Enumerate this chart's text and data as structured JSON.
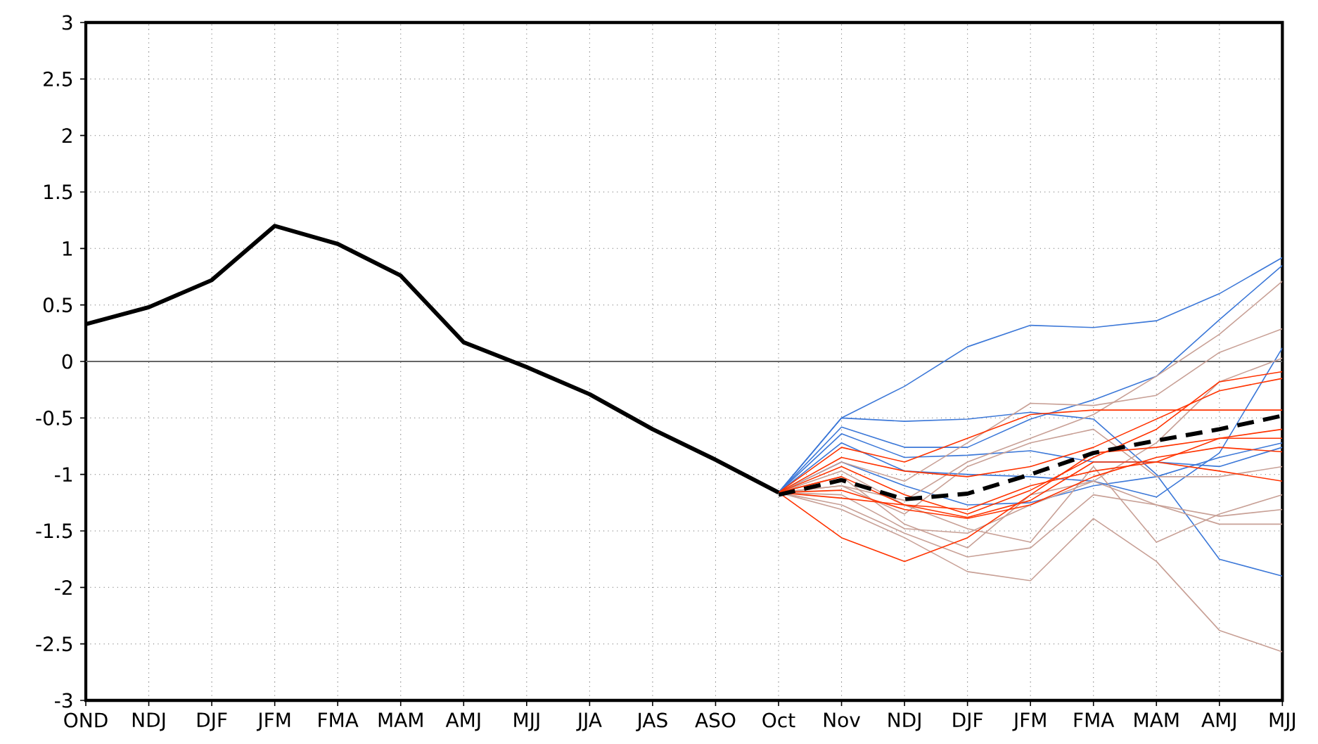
{
  "chart_data": {
    "type": "line",
    "categories": [
      "OND",
      "NDJ",
      "DJF",
      "JFM",
      "FMA",
      "MAM",
      "AMJ",
      "MJJ",
      "JJA",
      "JAS",
      "ASO",
      "Oct",
      "Nov",
      "NDJ",
      "DJF",
      "JFM",
      "FMA",
      "MAM",
      "AMJ",
      "MJJ"
    ],
    "ylim": [
      -3,
      3
    ],
    "yticks": [
      -3,
      -2.5,
      -2,
      -1.5,
      -1,
      -0.5,
      0,
      0.5,
      1,
      1.5,
      2,
      2.5,
      3
    ],
    "grid": true,
    "ref_lines": [
      {
        "axis": "y",
        "value": 0,
        "color": "#666666"
      }
    ],
    "series": [
      {
        "color": "#3c78d8",
        "values": [
          null,
          null,
          null,
          null,
          null,
          null,
          null,
          null,
          null,
          null,
          null,
          -1.16,
          -0.5,
          -0.22,
          0.13,
          0.32,
          0.3,
          0.36,
          0.6,
          0.92
        ]
      },
      {
        "color": "#3c78d8",
        "values": [
          null,
          null,
          null,
          null,
          null,
          null,
          null,
          null,
          null,
          null,
          null,
          -1.16,
          -0.5,
          -0.53,
          -0.51,
          -0.45,
          -0.51,
          -1.0,
          -1.75,
          -1.9
        ]
      },
      {
        "color": "#3c78d8",
        "values": [
          null,
          null,
          null,
          null,
          null,
          null,
          null,
          null,
          null,
          null,
          null,
          -1.16,
          -0.58,
          -0.76,
          -0.76,
          -0.51,
          -0.34,
          -0.13,
          0.37,
          0.85
        ]
      },
      {
        "color": "#3c78d8",
        "values": [
          null,
          null,
          null,
          null,
          null,
          null,
          null,
          null,
          null,
          null,
          null,
          -1.16,
          -0.64,
          -0.85,
          -0.83,
          -0.79,
          -0.89,
          -0.89,
          -0.93,
          -0.76
        ]
      },
      {
        "color": "#3c78d8",
        "values": [
          null,
          null,
          null,
          null,
          null,
          null,
          null,
          null,
          null,
          null,
          null,
          -1.16,
          -0.72,
          -0.97,
          -1.0,
          -1.02,
          -1.06,
          -1.2,
          -0.81,
          0.12
        ]
      },
      {
        "color": "#3c78d8",
        "values": [
          null,
          null,
          null,
          null,
          null,
          null,
          null,
          null,
          null,
          null,
          null,
          -1.16,
          -0.89,
          -1.1,
          -1.27,
          -1.25,
          -1.1,
          -1.02,
          -0.85,
          -0.72
        ]
      },
      {
        "color": "#c8a096",
        "values": [
          null,
          null,
          null,
          null,
          null,
          null,
          null,
          null,
          null,
          null,
          null,
          -1.16,
          -1.1,
          -1.23,
          -0.89,
          -0.68,
          -0.47,
          -0.13,
          0.24,
          0.71
        ]
      },
      {
        "color": "#c8a096",
        "values": [
          null,
          null,
          null,
          null,
          null,
          null,
          null,
          null,
          null,
          null,
          null,
          -1.16,
          -1.27,
          -1.52,
          -1.73,
          -1.65,
          -1.18,
          -1.27,
          -1.44,
          -1.44
        ]
      },
      {
        "color": "#c8a096",
        "values": [
          null,
          null,
          null,
          null,
          null,
          null,
          null,
          null,
          null,
          null,
          null,
          -1.16,
          -1.31,
          -1.56,
          -1.86,
          -1.94,
          -1.39,
          -1.77,
          -2.38,
          -2.57
        ]
      },
      {
        "color": "#c8a096",
        "values": [
          null,
          null,
          null,
          null,
          null,
          null,
          null,
          null,
          null,
          null,
          null,
          -1.16,
          -1.18,
          -1.48,
          -1.52,
          -1.27,
          -1.06,
          -1.27,
          -1.37,
          -1.31
        ]
      },
      {
        "color": "#c8a096",
        "values": [
          null,
          null,
          null,
          null,
          null,
          null,
          null,
          null,
          null,
          null,
          null,
          -1.16,
          -0.89,
          -1.06,
          -0.72,
          -0.37,
          -0.39,
          -0.3,
          0.08,
          0.29
        ]
      },
      {
        "color": "#c8a096",
        "values": [
          null,
          null,
          null,
          null,
          null,
          null,
          null,
          null,
          null,
          null,
          null,
          -1.16,
          -1.02,
          -1.44,
          -1.65,
          -1.18,
          -1.06,
          -0.72,
          -0.18,
          0.03
        ]
      },
      {
        "color": "#c8a096",
        "values": [
          null,
          null,
          null,
          null,
          null,
          null,
          null,
          null,
          null,
          null,
          null,
          -1.16,
          -0.97,
          -1.27,
          -1.48,
          -1.6,
          -0.93,
          -1.6,
          -1.35,
          -1.18
        ]
      },
      {
        "color": "#c8a096",
        "values": [
          null,
          null,
          null,
          null,
          null,
          null,
          null,
          null,
          null,
          null,
          null,
          -1.16,
          -1.1,
          -1.35,
          -0.93,
          -0.72,
          -0.6,
          -1.02,
          -1.02,
          -0.93
        ]
      },
      {
        "color": "#ff3300",
        "values": [
          null,
          null,
          null,
          null,
          null,
          null,
          null,
          null,
          null,
          null,
          null,
          -1.16,
          -0.76,
          -0.89,
          -0.68,
          -0.47,
          -0.43,
          -0.43,
          -0.43,
          -0.43
        ]
      },
      {
        "color": "#ff3300",
        "values": [
          null,
          null,
          null,
          null,
          null,
          null,
          null,
          null,
          null,
          null,
          null,
          -1.16,
          -0.85,
          -0.97,
          -1.02,
          -0.93,
          -0.76,
          -0.51,
          -0.26,
          -0.15
        ]
      },
      {
        "color": "#ff3300",
        "values": [
          null,
          null,
          null,
          null,
          null,
          null,
          null,
          null,
          null,
          null,
          null,
          -1.16,
          -0.93,
          -1.18,
          -1.35,
          -1.14,
          -0.85,
          -0.6,
          -0.18,
          -0.09
        ]
      },
      {
        "color": "#ff3300",
        "values": [
          null,
          null,
          null,
          null,
          null,
          null,
          null,
          null,
          null,
          null,
          null,
          -1.16,
          -1.21,
          -1.27,
          -1.38,
          -1.23,
          -0.89,
          -0.89,
          -0.97,
          -1.06
        ]
      },
      {
        "color": "#ff3300",
        "values": [
          null,
          null,
          null,
          null,
          null,
          null,
          null,
          null,
          null,
          null,
          null,
          -1.16,
          -1.56,
          -1.77,
          -1.56,
          -1.18,
          -0.81,
          -0.76,
          -0.68,
          -0.6
        ]
      },
      {
        "color": "#ff3300",
        "values": [
          null,
          null,
          null,
          null,
          null,
          null,
          null,
          null,
          null,
          null,
          null,
          -1.16,
          -1.02,
          -1.27,
          -1.31,
          -1.1,
          -0.97,
          -0.89,
          -0.68,
          -0.68
        ]
      },
      {
        "color": "#ff3300",
        "values": [
          null,
          null,
          null,
          null,
          null,
          null,
          null,
          null,
          null,
          null,
          null,
          -1.16,
          -1.14,
          -1.31,
          -1.39,
          -1.27,
          -1.02,
          -0.85,
          -0.76,
          -0.8
        ]
      },
      {
        "color": "#000000",
        "line_style": "solid",
        "values": [
          0.33,
          0.48,
          0.72,
          1.2,
          1.04,
          0.76,
          0.17,
          -0.05,
          -0.29,
          -0.6,
          -0.87,
          -1.16,
          null,
          null,
          null,
          null,
          null,
          null,
          null,
          null
        ]
      },
      {
        "color": "#000000",
        "line_style": "dashed",
        "values": [
          null,
          null,
          null,
          null,
          null,
          null,
          null,
          null,
          null,
          null,
          null,
          -1.18,
          -1.05,
          -1.22,
          -1.17,
          -1.0,
          -0.81,
          -0.7,
          -0.6,
          -0.48
        ]
      }
    ]
  }
}
